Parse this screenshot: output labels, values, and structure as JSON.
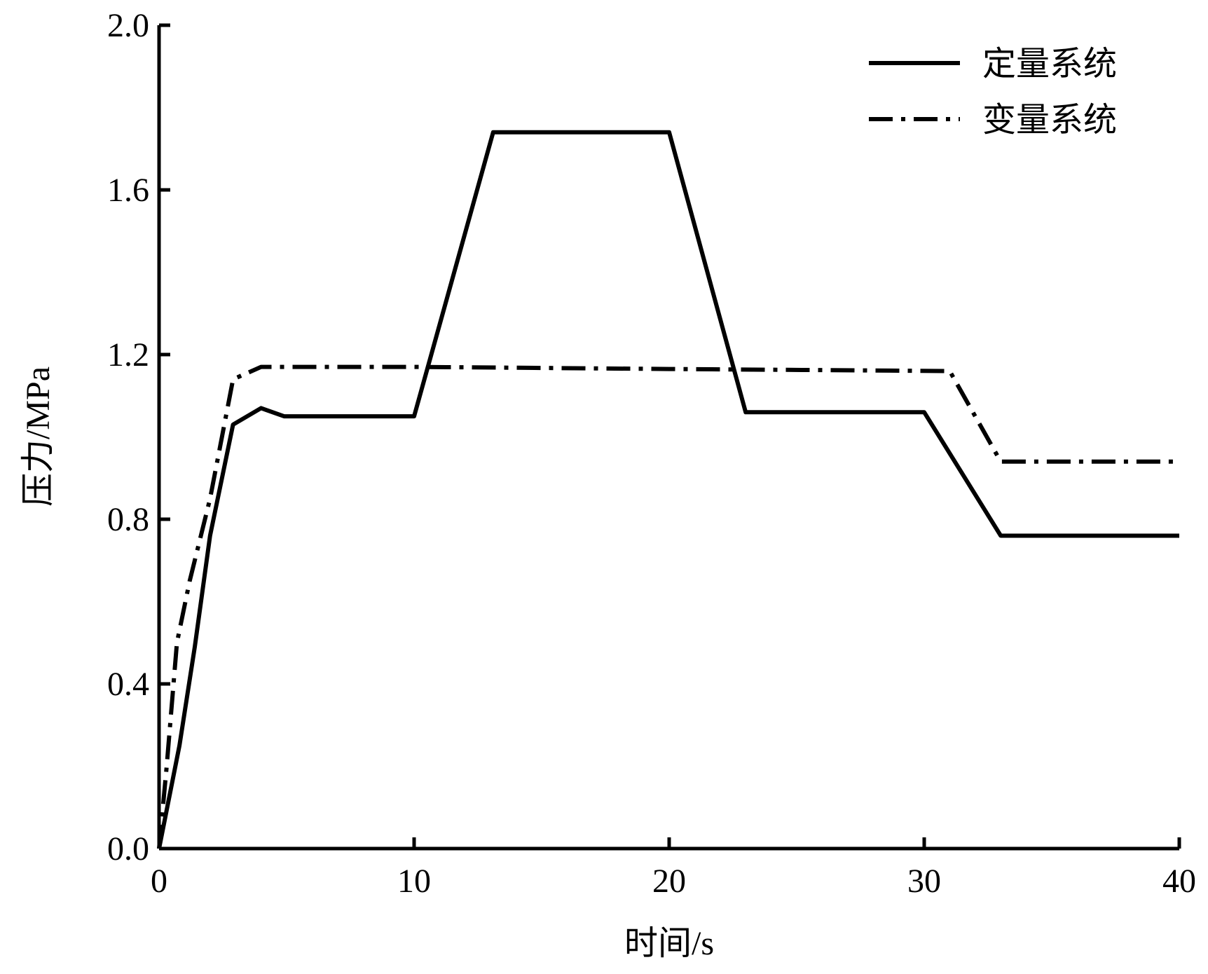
{
  "chart_data": {
    "type": "line",
    "x_label": "时间/s",
    "y_label": "压力/MPa",
    "xlim": [
      0,
      40
    ],
    "xticks": [
      0,
      10,
      20,
      30,
      40
    ],
    "ylim": [
      0,
      2.0
    ],
    "yticks": [
      {
        "value": 0,
        "label": "0.0"
      },
      0.4,
      0.8,
      1.2,
      1.6,
      {
        "value": 2.0,
        "label": "2.0"
      }
    ],
    "legend_position": "upper right",
    "series": [
      {
        "name": "定量系统",
        "color": "#000000",
        "line_style": "solid",
        "x": [
          0,
          0.8,
          1.4,
          2.0,
          2.9,
          4.0,
          4.9,
          10,
          13.1,
          20,
          23.0,
          30,
          33,
          40
        ],
        "values": [
          0,
          0.25,
          0.49,
          0.76,
          1.03,
          1.07,
          1.05,
          1.05,
          1.74,
          1.74,
          1.06,
          1.06,
          0.76,
          0.76
        ]
      },
      {
        "name": "变量系统",
        "color": "#000000",
        "line_style": "dashdot",
        "x": [
          0,
          0.3,
          0.7,
          1.2,
          2.0,
          2.9,
          4.0,
          10,
          20,
          31,
          33,
          40
        ],
        "values": [
          0,
          0.2,
          0.5,
          0.65,
          0.85,
          1.14,
          1.17,
          1.17,
          1.165,
          1.16,
          0.94,
          0.94
        ]
      }
    ]
  }
}
